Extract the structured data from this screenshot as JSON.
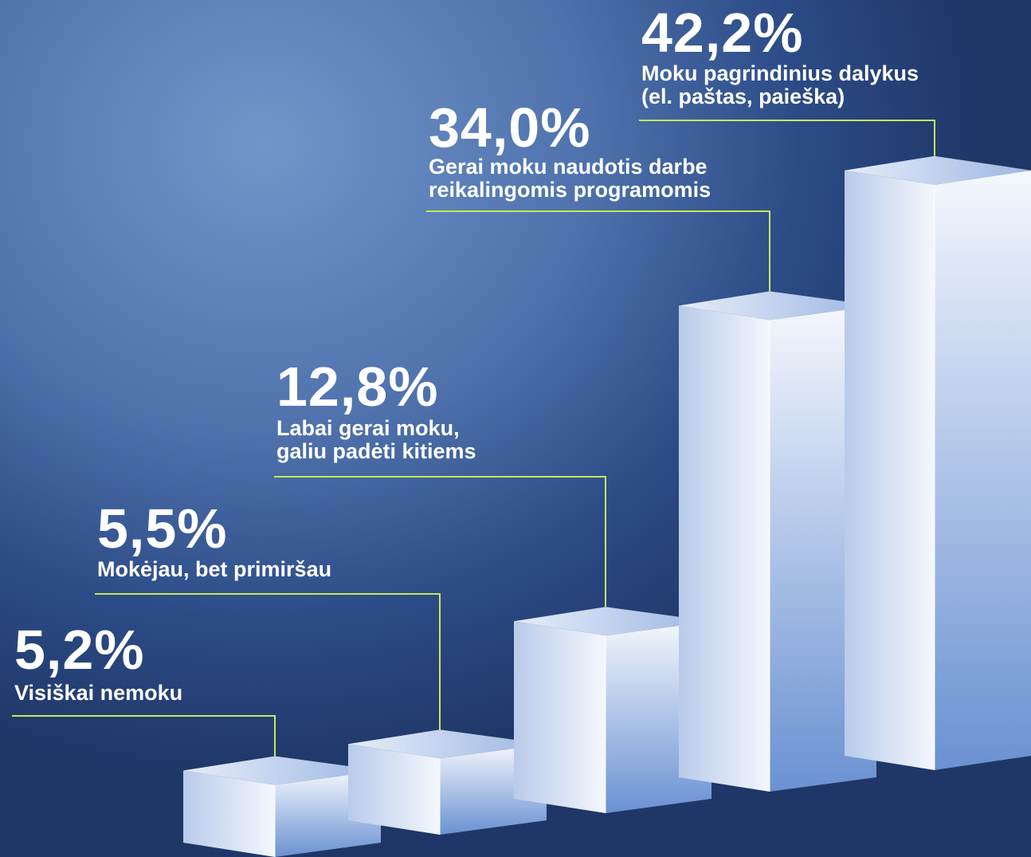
{
  "chart_data": {
    "type": "bar3d",
    "categories": [
      "Visiškai nemoku",
      "Mokėjau, bet primiršau",
      "Labai gerai moku,\ngaliu padėti kitiems",
      "Gerai moku naudotis darbe\nreikalingomis programomis",
      "Moku pagrindinius dalykus\n(el. paštas, paieška)"
    ],
    "values": [
      5.2,
      5.5,
      12.8,
      34.0,
      42.2
    ],
    "value_labels": [
      "5,2%",
      "5,5%",
      "12,8%",
      "34,0%",
      "42,2%"
    ],
    "color": "#6a91d2",
    "line_color": "#c6e85a"
  }
}
